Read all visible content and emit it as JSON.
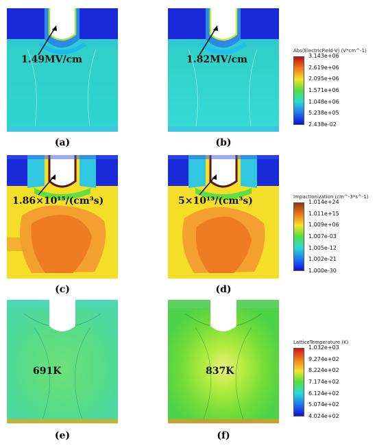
{
  "panels": [
    {
      "label": "(a)",
      "annotation": "1.49MV/cm"
    },
    {
      "label": "(b)",
      "annotation": "1.82MV/cm"
    },
    {
      "label": "(c)",
      "annotation": "1.86×10¹⁵/(cm³s)"
    },
    {
      "label": "(d)",
      "annotation": "5×10¹³/(cm³s)"
    },
    {
      "label": "(e)",
      "annotation": "691K"
    },
    {
      "label": "(f)",
      "annotation": "837K"
    }
  ],
  "legends": [
    {
      "title": "Abs(ElectricField-V) (V*cm^-1)",
      "ticks": [
        "3.143e+06",
        "2.619e+06",
        "2.095e+06",
        "1.571e+06",
        "1.048e+06",
        "5.238e+05",
        "2.438e-02"
      ],
      "colors": [
        "#b81010",
        "#f07818",
        "#f4e22a",
        "#50e040",
        "#2cd8d8",
        "#2078f0",
        "#1010d8"
      ]
    },
    {
      "title": "ImpactIonization (cm^-3*s^-1)",
      "ticks": [
        "1.014e+24",
        "1.011e+15",
        "1.009e+06",
        "1.007e-03",
        "1.005e-12",
        "1.002e-21",
        "1.000e-30"
      ],
      "colors": [
        "#8a3a10",
        "#f07818",
        "#f4e22a",
        "#50e040",
        "#2cd8d8",
        "#2078f0",
        "#1010d8"
      ]
    },
    {
      "title": "LatticeTemperature (K)",
      "ticks": [
        "1.032e+03",
        "9.274e+02",
        "8.224e+02",
        "7.174e+02",
        "6.124e+02",
        "5.074e+02",
        "4.024e+02"
      ],
      "colors": [
        "#d01818",
        "#f08020",
        "#f4e22a",
        "#50e040",
        "#2cd8d8",
        "#2078f0",
        "#1010d8"
      ]
    }
  ]
}
